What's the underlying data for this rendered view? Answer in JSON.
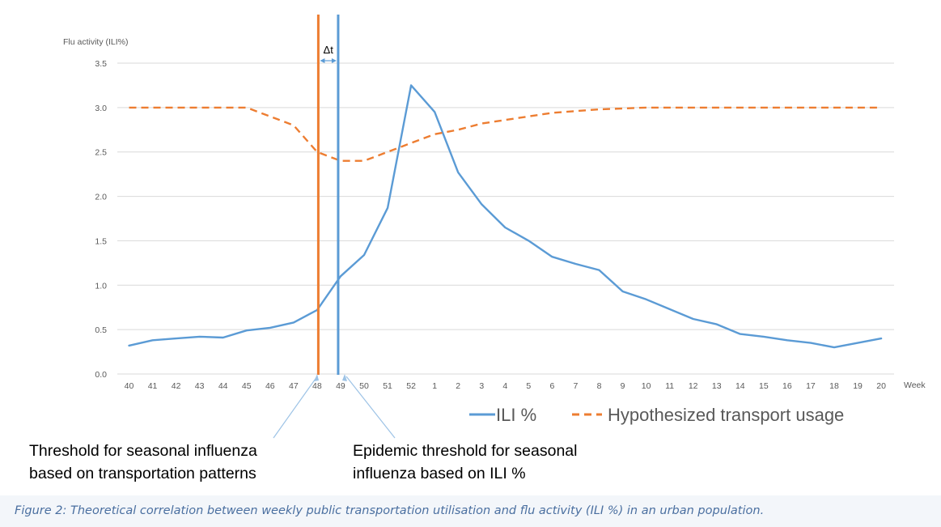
{
  "chart_data": {
    "type": "line",
    "ylabel": "Flu activity (ILI%)",
    "xlabel": "Week",
    "categories": [
      "40",
      "41",
      "42",
      "43",
      "44",
      "45",
      "46",
      "47",
      "48",
      "49",
      "50",
      "51",
      "52",
      "1",
      "2",
      "3",
      "4",
      "5",
      "6",
      "7",
      "8",
      "9",
      "10",
      "11",
      "12",
      "13",
      "14",
      "15",
      "16",
      "17",
      "18",
      "19",
      "20"
    ],
    "yticks": [
      "0.0",
      "0.5",
      "1.0",
      "1.5",
      "2.0",
      "2.5",
      "3.0",
      "3.5"
    ],
    "ylim": [
      0,
      3.5
    ],
    "grid": true,
    "legend_position": "bottom-right",
    "series": [
      {
        "name": "ILI %",
        "color": "#5b9bd5",
        "style": "solid",
        "values": [
          0.32,
          0.38,
          0.4,
          0.42,
          0.41,
          0.49,
          0.52,
          0.58,
          0.72,
          1.1,
          1.34,
          1.87,
          3.25,
          2.95,
          2.27,
          1.91,
          1.65,
          1.5,
          1.32,
          1.24,
          1.17,
          0.93,
          0.84,
          0.73,
          0.62,
          0.56,
          0.45,
          0.42,
          0.38,
          0.35,
          0.3,
          0.35,
          0.4
        ]
      },
      {
        "name": "Hypothesized transport usage",
        "color": "#ed7d31",
        "style": "dashed",
        "values": [
          3.0,
          3.0,
          3.0,
          3.0,
          3.0,
          3.0,
          2.9,
          2.8,
          2.5,
          2.4,
          2.4,
          2.5,
          2.6,
          2.7,
          2.75,
          2.82,
          2.86,
          2.9,
          2.94,
          2.96,
          2.98,
          2.99,
          3.0,
          3.0,
          3.0,
          3.0,
          3.0,
          3.0,
          3.0,
          3.0,
          3.0,
          3.0,
          3.0
        ]
      }
    ],
    "markers": [
      {
        "name": "transport-threshold",
        "week": "48",
        "color": "#ed7d31",
        "label": "Threshold for seasonal influenza based on transportation patterns"
      },
      {
        "name": "ili-threshold",
        "week": "49",
        "color": "#5b9bd5",
        "label": "Epidemic threshold for seasonal influenza based on ILI %"
      }
    ],
    "delta_label": "Δt"
  },
  "annotations": {
    "left_line1": "Threshold for seasonal influenza",
    "left_line2": "based on transportation patterns",
    "right_line1": "Epidemic threshold for seasonal",
    "right_line2": "influenza based on ILI %"
  },
  "caption": "Figure 2: Theoretical correlation between weekly public transportation utilisation and flu activity (ILI %) in an urban population."
}
